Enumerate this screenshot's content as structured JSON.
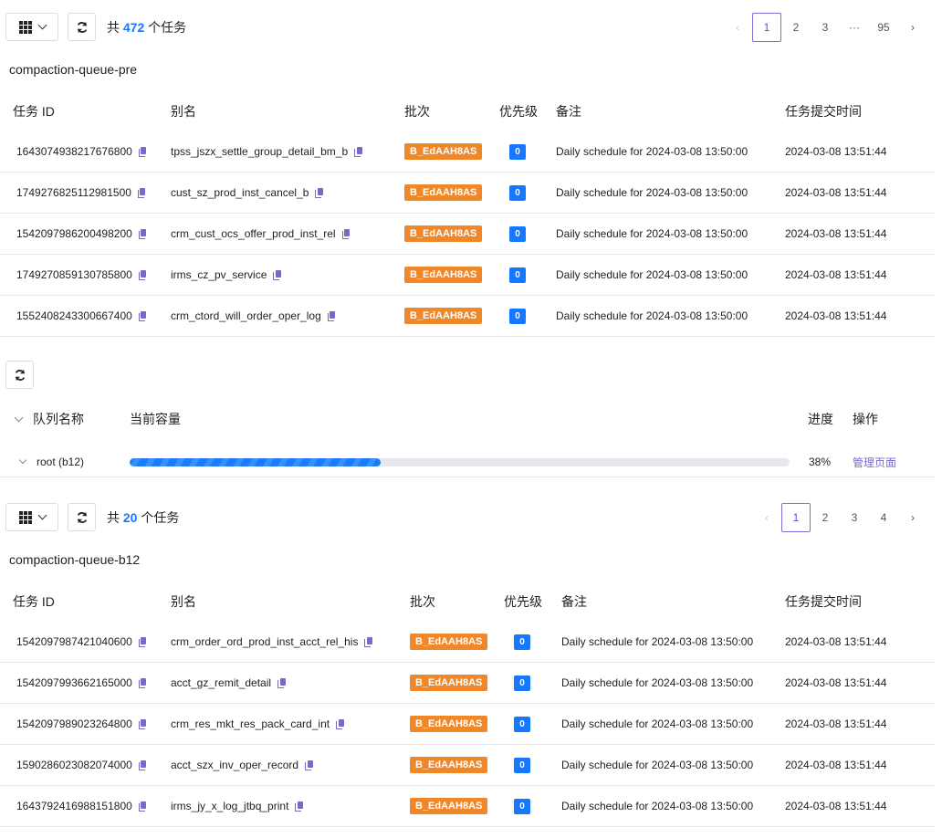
{
  "section1": {
    "total_prefix": "共",
    "total": "472",
    "total_suffix": "个任务",
    "pager": [
      "1",
      "2",
      "3",
      "···",
      "95"
    ],
    "queue_title": "compaction-queue-pre",
    "columns": [
      "任务 ID",
      "别名",
      "批次",
      "优先级",
      "备注",
      "任务提交时间"
    ],
    "rows": [
      {
        "id": "1643074938217676800",
        "alias": "tpss_jszx_settle_group_detail_bm_b",
        "batch": "B_EdAAH8AS",
        "priority": "0",
        "note": "Daily schedule for 2024-03-08 13:50:00",
        "time": "2024-03-08 13:51:44"
      },
      {
        "id": "1749276825112981500",
        "alias": "cust_sz_prod_inst_cancel_b",
        "batch": "B_EdAAH8AS",
        "priority": "0",
        "note": "Daily schedule for 2024-03-08 13:50:00",
        "time": "2024-03-08 13:51:44"
      },
      {
        "id": "1542097986200498200",
        "alias": "crm_cust_ocs_offer_prod_inst_rel",
        "batch": "B_EdAAH8AS",
        "priority": "0",
        "note": "Daily schedule for 2024-03-08 13:50:00",
        "time": "2024-03-08 13:51:44"
      },
      {
        "id": "1749270859130785800",
        "alias": "irms_cz_pv_service",
        "batch": "B_EdAAH8AS",
        "priority": "0",
        "note": "Daily schedule for 2024-03-08 13:50:00",
        "time": "2024-03-08 13:51:44"
      },
      {
        "id": "1552408243300667400",
        "alias": "crm_ctord_will_order_oper_log",
        "batch": "B_EdAAH8AS",
        "priority": "0",
        "note": "Daily schedule for 2024-03-08 13:50:00",
        "time": "2024-03-08 13:51:44"
      }
    ]
  },
  "queue": {
    "columns": [
      "队列名称",
      "当前容量",
      "进度",
      "操作"
    ],
    "row": {
      "name": "root (b12)",
      "progress_percent": 38,
      "progress_label": "38%",
      "action": "管理页面"
    }
  },
  "section2": {
    "total_prefix": "共",
    "total": "20",
    "total_suffix": "个任务",
    "pager": [
      "1",
      "2",
      "3",
      "4"
    ],
    "queue_title": "compaction-queue-b12",
    "columns": [
      "任务 ID",
      "别名",
      "批次",
      "优先级",
      "备注",
      "任务提交时间"
    ],
    "rows": [
      {
        "id": "1542097987421040600",
        "alias": "crm_order_ord_prod_inst_acct_rel_his",
        "batch": "B_EdAAH8AS",
        "priority": "0",
        "note": "Daily schedule for 2024-03-08 13:50:00",
        "time": "2024-03-08 13:51:44"
      },
      {
        "id": "1542097993662165000",
        "alias": "acct_gz_remit_detail",
        "batch": "B_EdAAH8AS",
        "priority": "0",
        "note": "Daily schedule for 2024-03-08 13:50:00",
        "time": "2024-03-08 13:51:44"
      },
      {
        "id": "1542097989023264800",
        "alias": "crm_res_mkt_res_pack_card_int",
        "batch": "B_EdAAH8AS",
        "priority": "0",
        "note": "Daily schedule for 2024-03-08 13:50:00",
        "time": "2024-03-08 13:51:44"
      },
      {
        "id": "1590286023082074000",
        "alias": "acct_szx_inv_oper_record",
        "batch": "B_EdAAH8AS",
        "priority": "0",
        "note": "Daily schedule for 2024-03-08 13:50:00",
        "time": "2024-03-08 13:51:44"
      },
      {
        "id": "1643792416988151800",
        "alias": "irms_jy_x_log_jtbq_print",
        "batch": "B_EdAAH8AS",
        "priority": "0",
        "note": "Daily schedule for 2024-03-08 13:50:00",
        "time": "2024-03-08 13:51:44"
      }
    ]
  },
  "colors": {
    "accent": "#1677ff",
    "badge": "#f0882a",
    "link": "#7a68c8"
  }
}
